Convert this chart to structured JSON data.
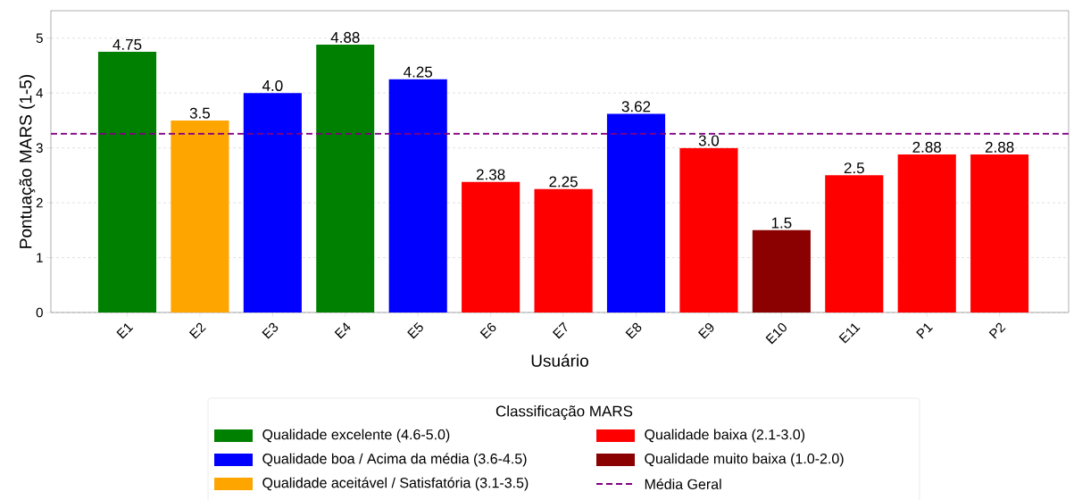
{
  "chart_data": {
    "type": "bar",
    "xlabel": "Usuário",
    "ylabel": "Pontuação MARS (1-5)",
    "legend_title": "Classificação MARS",
    "categories": [
      "E1",
      "E2",
      "E3",
      "E4",
      "E5",
      "E6",
      "E7",
      "E8",
      "E9",
      "E10",
      "E11",
      "P1",
      "P2"
    ],
    "series": [
      {
        "name": "Qualidade excelente (4.6-5.0)",
        "color": "#008000",
        "values": [
          4.75,
          null,
          null,
          4.88,
          null,
          null,
          null,
          null,
          null,
          null,
          null,
          null,
          null
        ],
        "value_labels": [
          "4.75",
          null,
          null,
          "4.88",
          null,
          null,
          null,
          null,
          null,
          null,
          null,
          null,
          null
        ]
      },
      {
        "name": "Qualidade boa / Acima da média (3.6-4.5)",
        "color": "#0000ff",
        "values": [
          null,
          null,
          4.0,
          null,
          4.25,
          null,
          null,
          3.62,
          null,
          null,
          null,
          null,
          null
        ],
        "value_labels": [
          null,
          null,
          "4.0",
          null,
          "4.25",
          null,
          null,
          "3.62",
          null,
          null,
          null,
          null,
          null
        ]
      },
      {
        "name": "Qualidade aceitável / Satisfatória (3.1-3.5)",
        "color": "#ffa500",
        "values": [
          null,
          3.5,
          null,
          null,
          null,
          null,
          null,
          null,
          null,
          null,
          null,
          null,
          null
        ],
        "value_labels": [
          null,
          "3.5",
          null,
          null,
          null,
          null,
          null,
          null,
          null,
          null,
          null,
          null,
          null
        ]
      },
      {
        "name": "Qualidade baixa (2.1-3.0)",
        "color": "#ff0000",
        "values": [
          null,
          null,
          null,
          null,
          null,
          2.38,
          2.25,
          null,
          3.0,
          null,
          2.5,
          2.88,
          2.88
        ],
        "value_labels": [
          null,
          null,
          null,
          null,
          null,
          "2.38",
          "2.25",
          null,
          "3.0",
          null,
          "2.5",
          "2.88",
          "2.88"
        ]
      },
      {
        "name": "Qualidade muito baixa (1.0-2.0)",
        "color": "#8b0000",
        "values": [
          null,
          null,
          null,
          null,
          null,
          null,
          null,
          null,
          null,
          1.5,
          null,
          null,
          null
        ],
        "value_labels": [
          null,
          null,
          null,
          null,
          null,
          null,
          null,
          null,
          null,
          "1.5",
          null,
          null,
          null
        ]
      }
    ],
    "ref_lines": [
      {
        "axis": "y",
        "value": 3.26,
        "label": "Média Geral",
        "color": "#800080",
        "line_style": "dashed"
      }
    ],
    "ylim": [
      0,
      5.5
    ],
    "yticks": [
      0,
      1,
      2,
      3,
      4,
      5
    ],
    "grid": "y",
    "legend": "bottom"
  }
}
